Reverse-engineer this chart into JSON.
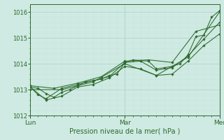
{
  "bg_color": "#ceeae2",
  "grid_major_color": "#b8d8d0",
  "grid_minor_color": "#c8e4dc",
  "line_color": "#2d6a2d",
  "marker_color": "#2d6a2d",
  "xlabel": "Pression niveau de la mer( hPa )",
  "ylim": [
    1012,
    1016.3
  ],
  "yticks": [
    1012,
    1013,
    1014,
    1015,
    1016
  ],
  "xlim": [
    0,
    48
  ],
  "xtick_positions": [
    0,
    24,
    48
  ],
  "xtick_labels": [
    "Lun",
    "Mar",
    "Mer"
  ],
  "series": [
    [
      0,
      1013.1,
      2,
      1013.05,
      4,
      1012.85,
      6,
      1012.7,
      8,
      1012.9,
      10,
      1013.0,
      12,
      1013.15,
      14,
      1013.3,
      16,
      1013.35,
      18,
      1013.4,
      20,
      1013.55,
      22,
      1013.6,
      24,
      1014.05,
      26,
      1014.15,
      28,
      1014.12,
      30,
      1014.1,
      32,
      1013.8,
      34,
      1013.85,
      36,
      1013.9,
      38,
      1014.0,
      40,
      1014.35,
      42,
      1015.05,
      44,
      1015.1,
      46,
      1015.8,
      48,
      1016.05
    ],
    [
      0,
      1013.1,
      2,
      1012.8,
      4,
      1012.65,
      8,
      1013.05,
      12,
      1013.2,
      16,
      1013.35,
      20,
      1013.5,
      24,
      1014.05,
      28,
      1014.1,
      32,
      1013.75,
      36,
      1013.85,
      40,
      1014.3,
      44,
      1014.95,
      48,
      1015.6
    ],
    [
      0,
      1013.1,
      4,
      1012.6,
      8,
      1012.75,
      12,
      1013.1,
      16,
      1013.2,
      20,
      1013.45,
      24,
      1013.9,
      28,
      1013.8,
      32,
      1013.55,
      36,
      1013.6,
      40,
      1014.1,
      44,
      1014.7,
      48,
      1015.15
    ],
    [
      0,
      1013.15,
      6,
      1013.05,
      12,
      1013.25,
      18,
      1013.5,
      24,
      1014.1,
      30,
      1014.15,
      36,
      1014.05,
      42,
      1015.25,
      48,
      1015.5
    ],
    [
      0,
      1013.0,
      8,
      1013.0,
      16,
      1013.3,
      24,
      1014.0,
      32,
      1013.55,
      40,
      1014.25,
      48,
      1016.0
    ]
  ]
}
